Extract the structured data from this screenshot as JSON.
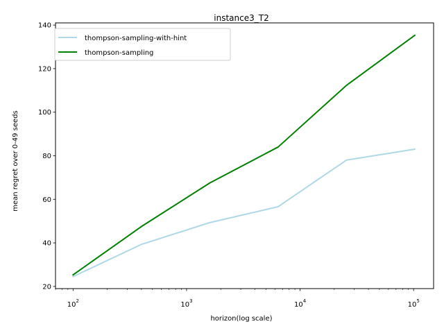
{
  "chart_data": {
    "type": "line",
    "title": "instance3_T2",
    "xlabel": "horizon(log scale)",
    "ylabel": "mean regret over 0-49 seeds",
    "xscale": "log",
    "xlim": [
      70,
      150000
    ],
    "ylim": [
      19,
      141
    ],
    "grid": false,
    "legend_position": "top-left",
    "x": [
      100,
      400,
      1600,
      6400,
      25600,
      102400
    ],
    "x_ticks": [
      {
        "value": 100,
        "base": "10",
        "exp": "2"
      },
      {
        "value": 1000,
        "base": "10",
        "exp": "3"
      },
      {
        "value": 10000,
        "base": "10",
        "exp": "4"
      },
      {
        "value": 100000,
        "base": "10",
        "exp": "5"
      }
    ],
    "y_ticks": [
      {
        "value": 20,
        "label": "20"
      },
      {
        "value": 40,
        "label": "40"
      },
      {
        "value": 60,
        "label": "60"
      },
      {
        "value": 80,
        "label": "80"
      },
      {
        "value": 100,
        "label": "100"
      },
      {
        "value": 120,
        "label": "120"
      },
      {
        "value": 140,
        "label": "140"
      }
    ],
    "series": [
      {
        "name": "thompson-sampling-with-hint",
        "color": "#add8e6",
        "values": [
          24.5,
          39.3,
          49.3,
          56.6,
          78.0,
          83.0
        ]
      },
      {
        "name": "thompson-sampling",
        "color": "#008000",
        "values": [
          25.3,
          47.5,
          67.5,
          84.0,
          112.3,
          135.3
        ]
      }
    ]
  }
}
